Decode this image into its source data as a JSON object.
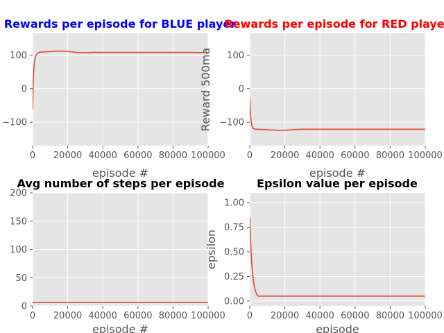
{
  "chart_data": [
    {
      "type": "line",
      "title": "Rewards per episode for BLUE player",
      "title_color": "#0000ff",
      "xlabel": "episode #",
      "ylabel": "",
      "xlim": [
        0,
        100000
      ],
      "ylim": [
        -170,
        165
      ],
      "xticks": [
        0,
        20000,
        40000,
        60000,
        80000,
        100000
      ],
      "xtick_labels": [
        "0",
        "20000",
        "40000",
        "60000",
        "80000",
        "100000"
      ],
      "yticks": [
        -100,
        0,
        100
      ],
      "ytick_labels": [
        "−100",
        "0",
        "100"
      ],
      "grid": true,
      "series": [
        {
          "color": "#e24a33",
          "x": [
            0,
            300,
            700,
            1200,
            1800,
            2500,
            3500,
            5000,
            8000,
            12000,
            16000,
            20000,
            25000,
            30000,
            35000,
            40000,
            50000,
            60000,
            70000,
            80000,
            90000,
            100000
          ],
          "y": [
            -60,
            20,
            60,
            85,
            98,
            104,
            108,
            109,
            110,
            111,
            112,
            111,
            108,
            107,
            108,
            108,
            108,
            108,
            108,
            108,
            108,
            107
          ]
        }
      ]
    },
    {
      "type": "line",
      "title": "Rewards per episode for RED player",
      "title_color": "#ff0000",
      "xlabel": "episode #",
      "ylabel": "Reward 500ma",
      "xlim": [
        0,
        100000
      ],
      "ylim": [
        -170,
        165
      ],
      "xticks": [
        0,
        20000,
        40000,
        60000,
        80000,
        100000
      ],
      "xtick_labels": [
        "0",
        "20000",
        "40000",
        "60000",
        "80000",
        "100000"
      ],
      "yticks": [
        -100,
        0,
        100
      ],
      "ytick_labels": [
        "−100",
        "0",
        "100"
      ],
      "grid": true,
      "series": [
        {
          "color": "#e24a33",
          "x": [
            0,
            300,
            700,
            1200,
            1800,
            2500,
            3500,
            5000,
            8000,
            12000,
            16000,
            20000,
            25000,
            30000,
            40000,
            50000,
            60000,
            70000,
            80000,
            90000,
            100000
          ],
          "y": [
            -30,
            -70,
            -95,
            -110,
            -117,
            -120,
            -121,
            -121,
            -122,
            -123,
            -124,
            -124,
            -122,
            -121,
            -121,
            -121,
            -121,
            -121,
            -121,
            -121,
            -121
          ]
        }
      ]
    },
    {
      "type": "line",
      "title": "Avg number of steps per episode",
      "title_color": "#000000",
      "xlabel": "episode #",
      "ylabel": "",
      "xlim": [
        0,
        100000
      ],
      "ylim": [
        0,
        200
      ],
      "xticks": [
        0,
        20000,
        40000,
        60000,
        80000,
        100000
      ],
      "xtick_labels": [
        "0",
        "20000",
        "40000",
        "60000",
        "80000",
        "100000"
      ],
      "yticks": [
        0,
        50,
        100,
        150,
        200
      ],
      "ytick_labels": [
        "0",
        "50",
        "100",
        "150",
        "200"
      ],
      "grid": true,
      "series": [
        {
          "color": "#e24a33",
          "x": [
            0,
            1000,
            5000,
            20000,
            40000,
            60000,
            80000,
            100000
          ],
          "y": [
            6,
            6,
            6,
            6,
            6,
            6,
            6,
            6
          ]
        }
      ]
    },
    {
      "type": "line",
      "title": "Epsilon value per episode",
      "title_color": "#000000",
      "xlabel": "episode",
      "ylabel": "epsilon",
      "xlim": [
        0,
        100000
      ],
      "ylim": [
        -0.05,
        1.1
      ],
      "xticks": [
        0,
        20000,
        40000,
        60000,
        80000,
        100000
      ],
      "xtick_labels": [
        "0",
        "20000",
        "40000",
        "60000",
        "80000",
        "100000"
      ],
      "yticks": [
        0.0,
        0.25,
        0.5,
        0.75,
        1.0
      ],
      "ytick_labels": [
        "0.00",
        "0.25",
        "0.50",
        "0.75",
        "1.00"
      ],
      "grid": true,
      "series": [
        {
          "color": "#e24a33",
          "x": [
            0,
            250,
            500,
            750,
            1000,
            1500,
            2000,
            2500,
            3000,
            3500,
            4000,
            4500,
            5000,
            10000,
            20000,
            40000,
            60000,
            80000,
            100000
          ],
          "y": [
            0.85,
            0.72,
            0.6,
            0.5,
            0.42,
            0.3,
            0.22,
            0.16,
            0.12,
            0.09,
            0.07,
            0.055,
            0.05,
            0.05,
            0.05,
            0.05,
            0.05,
            0.05,
            0.05
          ]
        }
      ]
    }
  ]
}
